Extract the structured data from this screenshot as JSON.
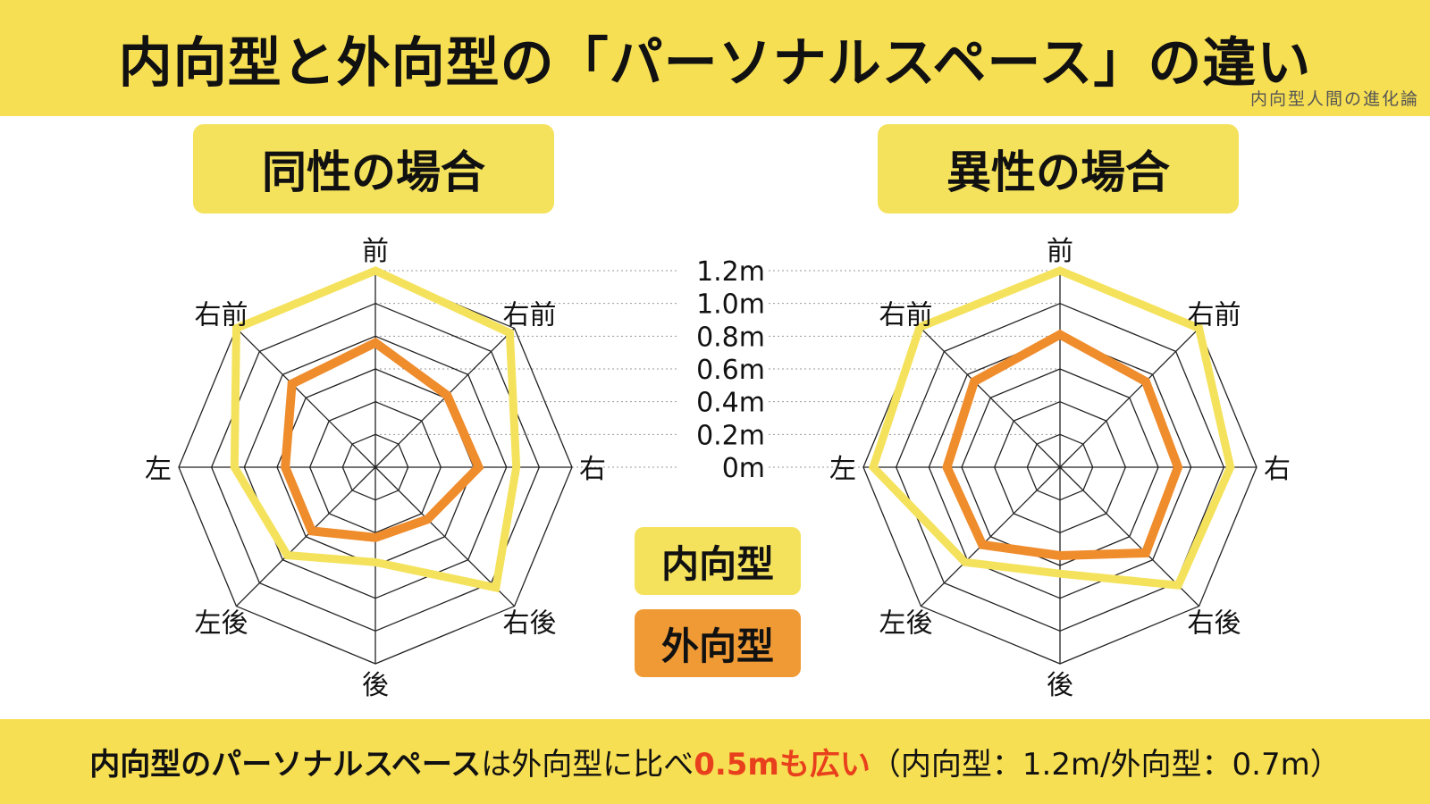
{
  "header": {
    "title": "内向型と外向型の「パーソナルスペース」の違い",
    "brand": "内向型人間の進化論"
  },
  "panels": {
    "left_title": "同性の場合",
    "right_title": "異性の場合"
  },
  "legend": {
    "introvert": "内向型",
    "extrovert": "外向型"
  },
  "footer": {
    "part1": "内向型のパーソナルスペース",
    "part2": "は外向型に比べ",
    "part3": "0.5mも広い",
    "part4": "（内向型：1.2m/外向型：0.7m）"
  },
  "colors": {
    "introvert": "#f5e25c",
    "extrovert": "#ef8c2c",
    "accent": "#e8401c",
    "band": "#f7df53"
  },
  "chart_data": [
    {
      "type": "radar",
      "title": "同性の場合",
      "categories": [
        "前",
        "右前",
        "右",
        "右後",
        "後",
        "左後",
        "左",
        "右前"
      ],
      "scale_labels": [
        "0m",
        "0.2m",
        "0.4m",
        "0.6m",
        "0.8m",
        "1.0m",
        "1.2m"
      ],
      "rmax": 1.2,
      "series": [
        {
          "name": "内向型",
          "values": [
            1.2,
            1.16,
            0.86,
            1.04,
            0.58,
            0.76,
            0.86,
            1.2
          ]
        },
        {
          "name": "外向型",
          "values": [
            0.76,
            0.62,
            0.63,
            0.45,
            0.43,
            0.55,
            0.55,
            0.72
          ]
        }
      ]
    },
    {
      "type": "radar",
      "title": "異性の場合",
      "categories": [
        "前",
        "右前",
        "右",
        "右後",
        "後",
        "左後",
        "左",
        "右前"
      ],
      "scale_labels": [
        "0m",
        "0.2m",
        "0.4m",
        "0.6m",
        "0.8m",
        "1.0m",
        "1.2m"
      ],
      "rmax": 1.2,
      "series": [
        {
          "name": "内向型",
          "values": [
            1.2,
            1.2,
            1.04,
            1.02,
            0.65,
            0.82,
            1.14,
            1.21
          ]
        },
        {
          "name": "外向型",
          "values": [
            0.81,
            0.74,
            0.72,
            0.74,
            0.54,
            0.67,
            0.69,
            0.74
          ]
        }
      ]
    }
  ]
}
